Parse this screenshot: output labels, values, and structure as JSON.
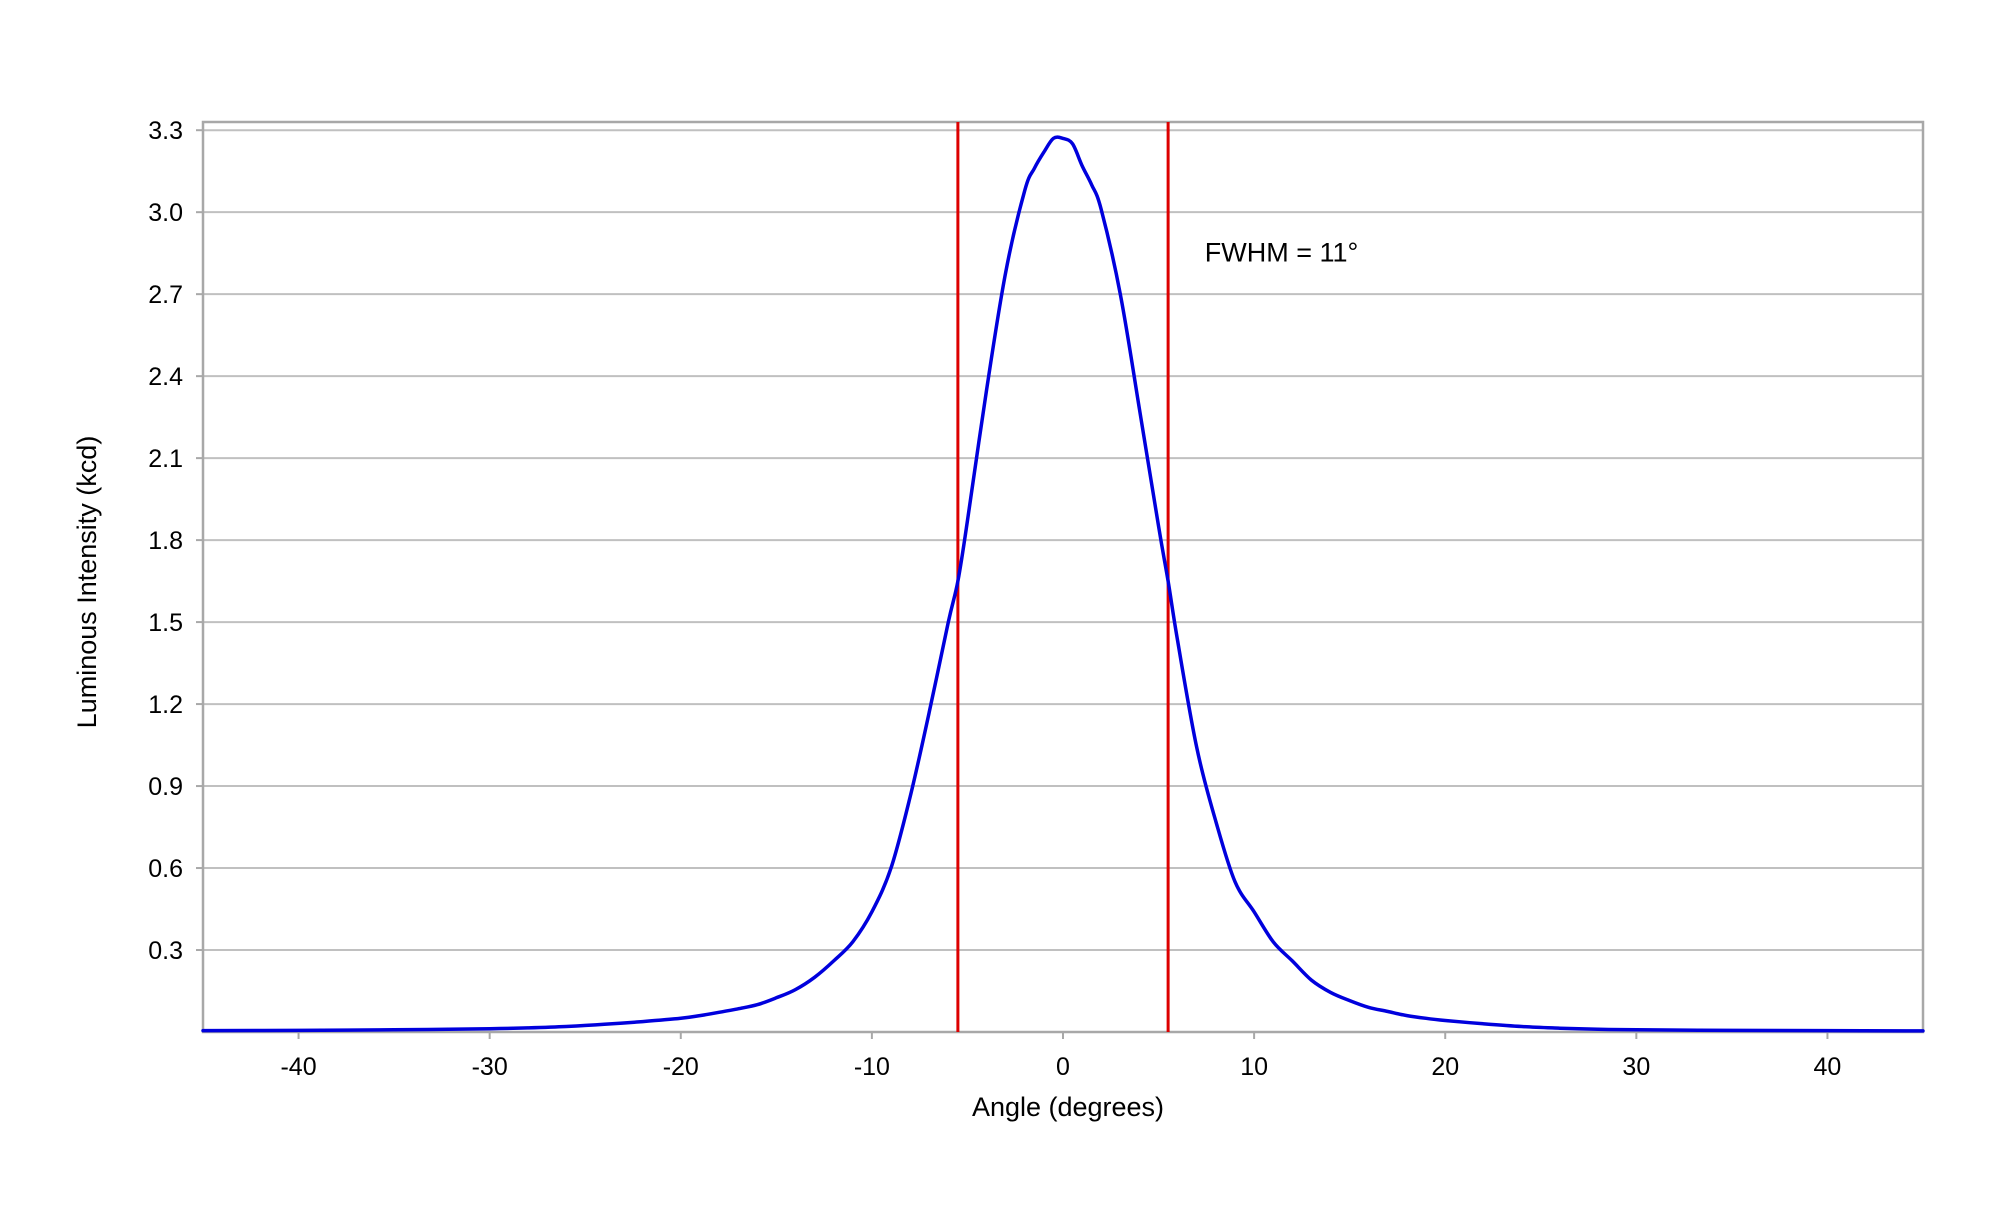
{
  "chart_data": {
    "type": "line",
    "title": "",
    "xlabel": "Angle (degrees)",
    "ylabel": "Luminous Intensity (kcd)",
    "xlim": [
      -45,
      45
    ],
    "ylim": [
      0,
      3.33
    ],
    "xticks": [
      -40,
      -30,
      -20,
      -10,
      0,
      10,
      20,
      30,
      40
    ],
    "xtick_labels": [
      "-40",
      "-30",
      "-20",
      "-10",
      "0",
      "10",
      "20",
      "30",
      "40"
    ],
    "yticks": [
      0.3,
      0.6,
      0.9,
      1.2,
      1.5,
      1.8,
      2.1,
      2.4,
      2.7,
      3.0,
      3.3
    ],
    "ytick_labels": [
      "0.3",
      "0.6",
      "0.9",
      "1.2",
      "1.5",
      "1.8",
      "2.1",
      "2.4",
      "2.7",
      "3.0",
      "3.3"
    ],
    "grid": "horizontal",
    "legend": "none",
    "series": [
      {
        "color": "#0000dd",
        "x": [
          -45,
          -40,
          -35,
          -30,
          -28,
          -26,
          -24,
          -22,
          -20,
          -19,
          -18,
          -17,
          -16,
          -15,
          -14,
          -13,
          -12,
          -11,
          -10,
          -9,
          -8,
          -7,
          -6,
          -5.5,
          -5,
          -4,
          -3,
          -2,
          -1.5,
          -1,
          -0.5,
          0,
          0.5,
          1,
          1.5,
          2,
          3,
          4,
          5,
          5.5,
          6,
          7,
          8,
          9,
          10,
          11,
          12,
          13,
          14,
          15,
          16,
          17,
          18,
          19,
          20,
          22,
          24,
          26,
          28,
          30,
          35,
          40,
          45
        ],
        "y": [
          0.005,
          0.006,
          0.008,
          0.012,
          0.015,
          0.02,
          0.028,
          0.038,
          0.05,
          0.06,
          0.072,
          0.085,
          0.1,
          0.125,
          0.155,
          0.2,
          0.26,
          0.33,
          0.44,
          0.6,
          0.86,
          1.17,
          1.5,
          1.65,
          1.87,
          2.35,
          2.78,
          3.08,
          3.16,
          3.22,
          3.27,
          3.27,
          3.25,
          3.17,
          3.1,
          3.01,
          2.7,
          2.28,
          1.85,
          1.65,
          1.43,
          1.04,
          0.77,
          0.55,
          0.44,
          0.33,
          0.26,
          0.19,
          0.145,
          0.115,
          0.09,
          0.075,
          0.06,
          0.05,
          0.042,
          0.03,
          0.02,
          0.014,
          0.01,
          0.008,
          0.006,
          0.005,
          0.004
        ]
      }
    ],
    "vlines": [
      {
        "x": -5.5,
        "color": "#dd0000"
      },
      {
        "x": 5.5,
        "color": "#dd0000"
      }
    ],
    "annotations": [
      {
        "text": "FWHM = 11°",
        "x": 7,
        "y": 2.82
      }
    ],
    "colors": {
      "curve": "#0000dd",
      "marker_lines": "#dd0000",
      "grid": "#c0c0c0",
      "frame": "#a8a8a8"
    }
  }
}
